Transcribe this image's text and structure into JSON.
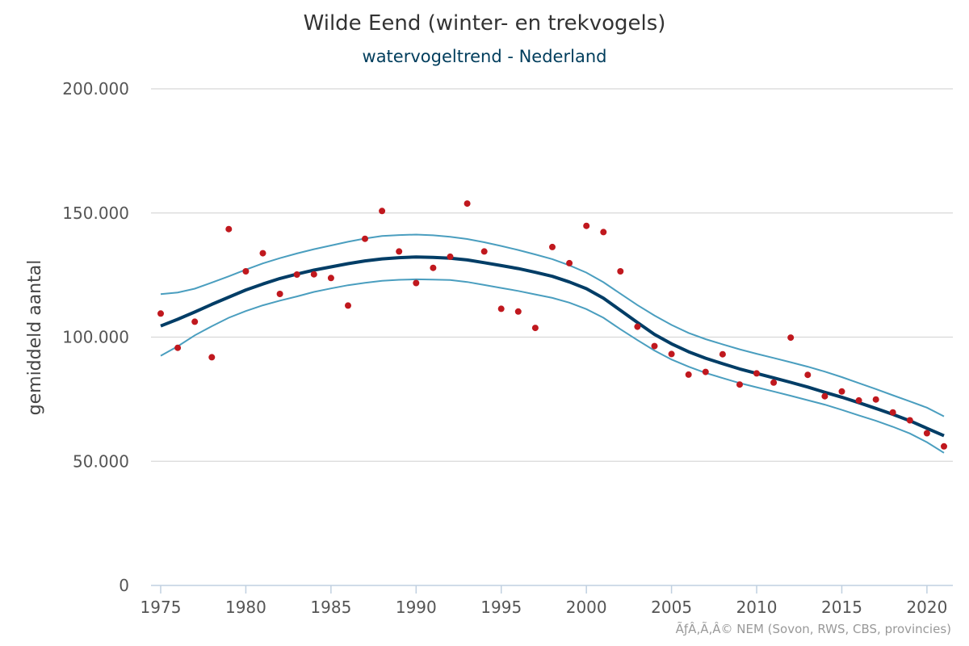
{
  "chart_data": {
    "type": "line",
    "title": "Wilde Eend (winter- en trekvogels)",
    "subtitle": "watervogeltrend - Nederland",
    "xlabel": "",
    "ylabel": "gemiddeld aantal",
    "credits": "ÃƒÂ‚Ã‚Â© NEM (Sovon, RWS, CBS, provincies)",
    "xlim": [
      1975,
      2021
    ],
    "ylim": [
      0,
      200000
    ],
    "x_ticks": [
      1975,
      1980,
      1985,
      1990,
      1995,
      2000,
      2005,
      2010,
      2015,
      2020
    ],
    "y_ticks": [
      {
        "value": 0,
        "label": "0"
      },
      {
        "value": 50000,
        "label": "50.000"
      },
      {
        "value": 100000,
        "label": "100.000"
      },
      {
        "value": 150000,
        "label": "150.000"
      },
      {
        "value": 200000,
        "label": "200.000"
      }
    ],
    "grid": true,
    "colors": {
      "trend": "#003d66",
      "band": "#4a9ebf",
      "points": "#c0181e",
      "grid": "#d8d8d8",
      "axis": "#c0d0e0"
    },
    "years": [
      1975,
      1976,
      1977,
      1978,
      1979,
      1980,
      1981,
      1982,
      1983,
      1984,
      1985,
      1986,
      1987,
      1988,
      1989,
      1990,
      1991,
      1992,
      1993,
      1994,
      1995,
      1996,
      1997,
      1998,
      1999,
      2000,
      2001,
      2002,
      2003,
      2004,
      2005,
      2006,
      2007,
      2008,
      2009,
      2010,
      2011,
      2012,
      2013,
      2014,
      2015,
      2016,
      2017,
      2018,
      2019,
      2020,
      2021
    ],
    "series": [
      {
        "role": "observed",
        "values": [
          109500,
          95700,
          106200,
          91900,
          143500,
          126500,
          133800,
          117400,
          125200,
          125300,
          123800,
          112700,
          139600,
          150800,
          134500,
          121800,
          127900,
          132400,
          153800,
          134500,
          111400,
          110300,
          103700,
          136300,
          129800,
          144800,
          142300,
          126500,
          104200,
          96400,
          93200,
          84900,
          86000,
          93100,
          80900,
          85400,
          81700,
          99800,
          84800,
          76200,
          78100,
          74500,
          74900,
          69700,
          66500,
          61300,
          56000
        ]
      },
      {
        "role": "trend",
        "values": [
          104500,
          107200,
          110100,
          113200,
          116100,
          119000,
          121400,
          123600,
          125400,
          127000,
          128300,
          129600,
          130700,
          131500,
          132000,
          132300,
          132100,
          131800,
          131100,
          130000,
          128800,
          127600,
          126100,
          124500,
          122200,
          119500,
          115700,
          110800,
          105900,
          101100,
          97300,
          94100,
          91500,
          89300,
          87200,
          85400,
          83600,
          81800,
          79900,
          77800,
          75800,
          73600,
          71300,
          68900,
          66300,
          63300,
          60300
        ]
      },
      {
        "role": "upper",
        "values": [
          117300,
          118000,
          119500,
          122000,
          124500,
          127200,
          129700,
          131800,
          133700,
          135400,
          136900,
          138400,
          139700,
          140700,
          141100,
          141300,
          141000,
          140400,
          139500,
          138200,
          136700,
          135100,
          133300,
          131400,
          128900,
          126000,
          122100,
          117500,
          112900,
          108700,
          104900,
          101700,
          99200,
          97100,
          95100,
          93300,
          91600,
          89900,
          88100,
          86100,
          83900,
          81500,
          79100,
          76600,
          74100,
          71600,
          68100
        ]
      },
      {
        "role": "lower",
        "values": [
          92500,
          96300,
          100700,
          104400,
          107800,
          110500,
          112800,
          114700,
          116400,
          118200,
          119600,
          120900,
          121900,
          122700,
          123100,
          123300,
          123200,
          123000,
          122200,
          121000,
          119800,
          118600,
          117200,
          115800,
          113900,
          111300,
          107800,
          103200,
          98800,
          94600,
          91000,
          88100,
          85600,
          83500,
          81500,
          79800,
          78100,
          76400,
          74600,
          72800,
          70700,
          68500,
          66300,
          63900,
          61200,
          57700,
          53400
        ]
      }
    ]
  }
}
